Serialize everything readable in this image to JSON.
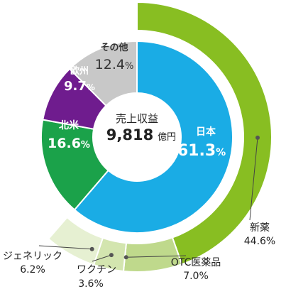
{
  "chart_data": {
    "type": "pie",
    "center": {
      "title": "売上収益",
      "value": "9,818",
      "unit": "億円"
    },
    "inner_ring": {
      "slices": [
        {
          "name": "日本",
          "value": 61.3,
          "label": "61.3",
          "pct": "%",
          "color": "#1AACE5"
        },
        {
          "name": "北米",
          "value": 16.6,
          "label": "16.6",
          "pct": "%",
          "color": "#1BA24A"
        },
        {
          "name": "欧州",
          "value": 9.7,
          "label": "9.7",
          "pct": "%",
          "color": "#6F1C8E"
        },
        {
          "name": "その他",
          "value": 12.4,
          "label": "12.4",
          "pct": "%",
          "color": "#C8C8C8"
        }
      ]
    },
    "outer_ring": {
      "slices": [
        {
          "name": "新薬",
          "value": 44.6,
          "label": "44.6%",
          "color": "#88BE22"
        },
        {
          "name": "OTC医薬品",
          "value": 7.0,
          "label": "7.0%",
          "color": "#BFD98C"
        },
        {
          "name": "ワクチン",
          "value": 3.6,
          "label": "3.6%",
          "color": "#D3E5AF"
        },
        {
          "name": "ジェネリック",
          "value": 6.2,
          "label": "6.2%",
          "color": "#E6F0D2"
        }
      ]
    }
  }
}
